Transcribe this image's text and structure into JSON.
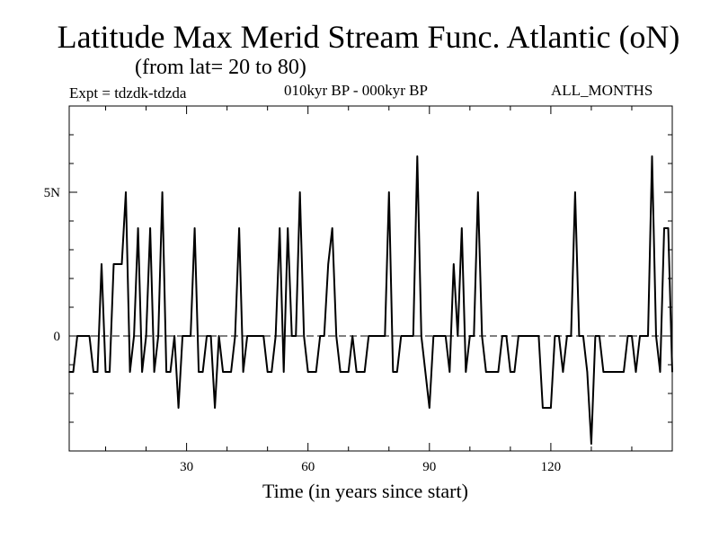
{
  "chart_data": {
    "type": "line",
    "title": "Latitude Max Merid Stream Func. Atlantic (oN)",
    "subtitle": "(from lat= 20 to 80)",
    "expt_label": "Expt = tdzdk-tdzda",
    "period_label": "010kyr BP - 000kyr BP",
    "months_label": "ALL_MONTHS",
    "xlabel": "Time (in years since start)",
    "ylabel": "",
    "xlim": [
      1,
      150
    ],
    "ylim": [
      -4,
      8
    ],
    "x_ticks": [
      30,
      60,
      90,
      120
    ],
    "y_ticks": [
      {
        "value": 0,
        "label": "0"
      },
      {
        "value": 5,
        "label": "5N"
      }
    ],
    "zero_line": "dashed",
    "series": [
      {
        "name": "latitude max",
        "x": [
          1,
          2,
          3,
          4,
          5,
          6,
          7,
          8,
          9,
          10,
          11,
          12,
          13,
          14,
          15,
          16,
          17,
          18,
          19,
          20,
          21,
          22,
          23,
          24,
          25,
          26,
          27,
          28,
          29,
          30,
          31,
          32,
          33,
          34,
          35,
          36,
          37,
          38,
          39,
          40,
          41,
          42,
          43,
          44,
          45,
          46,
          47,
          48,
          49,
          50,
          51,
          52,
          53,
          54,
          55,
          56,
          57,
          58,
          59,
          60,
          61,
          62,
          63,
          64,
          65,
          66,
          67,
          68,
          69,
          70,
          71,
          72,
          73,
          74,
          75,
          76,
          77,
          78,
          79,
          80,
          81,
          82,
          83,
          84,
          85,
          86,
          87,
          88,
          89,
          90,
          91,
          92,
          93,
          94,
          95,
          96,
          97,
          98,
          99,
          100,
          101,
          102,
          103,
          104,
          105,
          106,
          107,
          108,
          109,
          110,
          111,
          112,
          113,
          114,
          115,
          116,
          117,
          118,
          119,
          120,
          121,
          122,
          123,
          124,
          125,
          126,
          127,
          128,
          129,
          130,
          131,
          132,
          133,
          134,
          135,
          136,
          137,
          138,
          139,
          140,
          141,
          142,
          143,
          144,
          145,
          146,
          147,
          148,
          149,
          150
        ],
        "values": [
          -1.25,
          -1.25,
          0,
          0,
          0,
          0,
          -1.25,
          -1.25,
          2.5,
          -1.25,
          -1.25,
          2.5,
          2.5,
          2.5,
          5,
          -1.25,
          0,
          3.75,
          -1.25,
          0,
          3.75,
          -1.25,
          0,
          5,
          -1.25,
          -1.25,
          0,
          -2.5,
          0,
          0,
          0,
          3.75,
          -1.25,
          -1.25,
          0,
          0,
          -2.5,
          0,
          -1.25,
          -1.25,
          -1.25,
          0,
          3.75,
          -1.25,
          0,
          0,
          0,
          0,
          0,
          -1.25,
          -1.25,
          0,
          3.75,
          -1.25,
          3.75,
          0,
          0,
          5,
          0,
          -1.25,
          -1.25,
          -1.25,
          0,
          0,
          2.5,
          3.75,
          0,
          -1.25,
          -1.25,
          -1.25,
          0,
          -1.25,
          -1.25,
          -1.25,
          0,
          0,
          0,
          0,
          0,
          5,
          -1.25,
          -1.25,
          0,
          0,
          0,
          0,
          6.25,
          0,
          -1.25,
          -2.5,
          0,
          0,
          0,
          0,
          -1.25,
          2.5,
          0,
          3.75,
          -1.25,
          0,
          0,
          5,
          0,
          -1.25,
          -1.25,
          -1.25,
          -1.25,
          0,
          0,
          -1.25,
          -1.25,
          0,
          0,
          0,
          0,
          0,
          0,
          -2.5,
          -2.5,
          -2.5,
          0,
          0,
          -1.25,
          0,
          0,
          5,
          0,
          0,
          -1.25,
          -3.75,
          0,
          0,
          -1.25,
          -1.25,
          -1.25,
          -1.25,
          -1.25,
          -1.25,
          0,
          0,
          -1.25,
          0,
          0,
          0,
          6.25,
          0,
          -1.25,
          3.75,
          3.75,
          -1.25
        ]
      }
    ]
  }
}
